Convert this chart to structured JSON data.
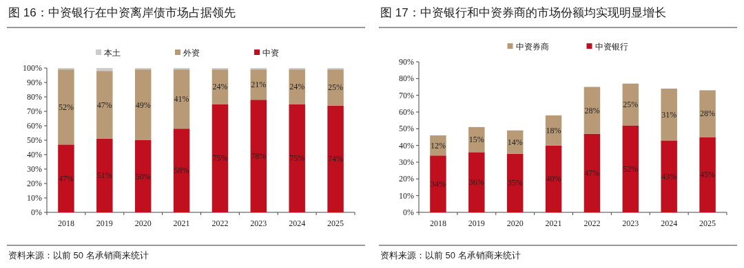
{
  "chart_data": [
    {
      "type": "bar",
      "title": "图 16：中资银行在中资离岸债市场占据领先",
      "stacked": true,
      "legend": "top",
      "categories": [
        "2018",
        "2019",
        "2020",
        "2021",
        "2022",
        "2023",
        "2024",
        "2025"
      ],
      "ylim": [
        0,
        100
      ],
      "yticks": [
        {
          "value": 0,
          "label": "0%"
        },
        {
          "value": 10,
          "label": "10%"
        },
        {
          "value": 20,
          "label": "20%"
        },
        {
          "value": 30,
          "label": "30%"
        },
        {
          "value": 40,
          "label": "40%"
        },
        {
          "value": 50,
          "label": "50%"
        },
        {
          "value": 60,
          "label": "60%"
        },
        {
          "value": 70,
          "label": "70%"
        },
        {
          "value": 80,
          "label": "80%"
        },
        {
          "value": 90,
          "label": "90%"
        },
        {
          "value": 100,
          "label": "100%"
        }
      ],
      "series": [
        {
          "name": "中资",
          "color": "#c00f1e",
          "values": [
            47,
            51,
            50,
            58,
            75,
            78,
            75,
            74
          ],
          "value_labels": [
            "47%",
            "51%",
            "50%",
            "58%",
            "75%",
            "78%",
            "75%",
            "74%"
          ]
        },
        {
          "name": "外资",
          "color": "#b89a76",
          "values": [
            52,
            47,
            49,
            41,
            24,
            21,
            24,
            25
          ],
          "value_labels": [
            "52%",
            "47%",
            "49%",
            "41%",
            "24%",
            "21%",
            "24%",
            "25%"
          ]
        },
        {
          "name": "本土",
          "color": "#cccccc",
          "values": [
            1,
            2,
            1,
            1,
            1,
            1,
            1,
            1
          ]
        }
      ],
      "annotations": [
        "资料来源：以前 50 名承销商来统计"
      ]
    },
    {
      "type": "bar",
      "title": "图 17：中资银行和中资券商的市场份额均实现明显增长",
      "stacked": true,
      "legend": "top",
      "categories": [
        "2018",
        "2019",
        "2020",
        "2021",
        "2022",
        "2023",
        "2024",
        "2025"
      ],
      "ylim": [
        0,
        90
      ],
      "yticks": [
        {
          "value": 0,
          "label": "0%"
        },
        {
          "value": 10,
          "label": "10%"
        },
        {
          "value": 20,
          "label": "20%"
        },
        {
          "value": 30,
          "label": "30%"
        },
        {
          "value": 40,
          "label": "40%"
        },
        {
          "value": 50,
          "label": "50%"
        },
        {
          "value": 60,
          "label": "60%"
        },
        {
          "value": 70,
          "label": "70%"
        },
        {
          "value": 80,
          "label": "80%"
        },
        {
          "value": 90,
          "label": "90%"
        }
      ],
      "series": [
        {
          "name": "中资银行",
          "color": "#c00f1e",
          "values": [
            34,
            36,
            35,
            40,
            47,
            52,
            43,
            45
          ],
          "value_labels": [
            "34%",
            "36%",
            "35%",
            "40%",
            "47%",
            "52%",
            "43%",
            "45%"
          ]
        },
        {
          "name": "中资券商",
          "color": "#b89a76",
          "values": [
            12,
            15,
            14,
            18,
            28,
            25,
            31,
            28
          ],
          "value_labels": [
            "12%",
            "15%",
            "14%",
            "18%",
            "28%",
            "25%",
            "31%",
            "28%"
          ]
        }
      ],
      "annotations": [
        "资料来源：以前 50 名承销商来统计"
      ]
    }
  ]
}
